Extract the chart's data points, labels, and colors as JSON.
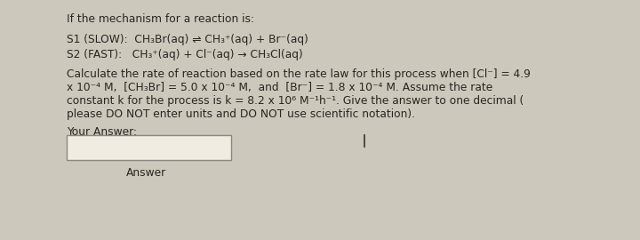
{
  "bg_color": "#cdc8bc",
  "panel_color": "#e5e0d4",
  "title_text": "If the mechanism for a reaction is:",
  "s1_text": "S1 (SLOW):  CH₃Br(aq) ⇌ CH₃⁺(aq) + Br⁻(aq)",
  "s2_text": "S2 (FAST):   CH₃⁺(aq) + Cl⁻(aq) → CH₃Cl(aq)",
  "body_line1": "Calculate the rate of reaction based on the rate law for this process when [Cl⁻] = 4.9",
  "body_line2": "x 10⁻⁴ M,  [CH₃Br] = 5.0 x 10⁻⁴ M,  and  [Br⁻] = 1.8 x 10⁻⁴ M. Assume the rate",
  "body_line3": "constant k for the process is k = 8.2 x 10⁶ M⁻¹h⁻¹. Give the answer to one decimal (",
  "body_line4": "please DO NOT enter units and DO NOT use scientific notation).",
  "your_answer_label": "Your Answer:",
  "answer_label": "Answer",
  "font_size": 8.8,
  "text_color": "#2a2520"
}
